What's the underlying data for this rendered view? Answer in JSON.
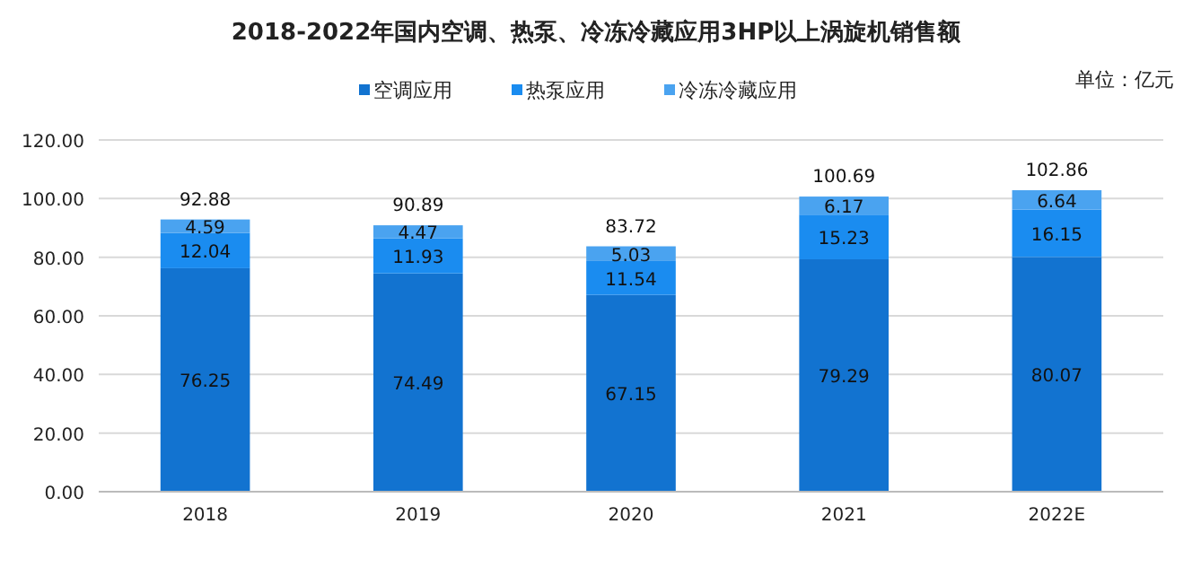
{
  "chart_data": {
    "type": "bar",
    "title": "2018-2022年国内空调、热泵、冷冻冷藏应用3HP以上涡旋机销售额",
    "annotations": [
      "单位：亿元"
    ],
    "categories": [
      "2018",
      "2019",
      "2020",
      "2021",
      "2022E"
    ],
    "stacked": true,
    "series": [
      {
        "name": "空调应用",
        "color": "#1273d0",
        "values": [
          76.25,
          74.49,
          67.15,
          79.29,
          80.07
        ]
      },
      {
        "name": "热泵应用",
        "color": "#1a8cf0",
        "values": [
          12.04,
          11.93,
          11.54,
          15.23,
          16.15
        ]
      },
      {
        "name": "冷冻冷藏应用",
        "color": "#4aa3f0",
        "values": [
          4.59,
          4.47,
          5.03,
          6.17,
          6.64
        ]
      }
    ],
    "totals": [
      "92.88",
      "90.89",
      "83.72",
      "100.69",
      "102.86"
    ],
    "data_labels": true,
    "legend": "top",
    "grid": "y",
    "ylim": [
      0,
      120
    ],
    "yticks": [
      {
        "value": 0,
        "label": "0.00"
      },
      {
        "value": 20,
        "label": "20.00"
      },
      {
        "value": 40,
        "label": "40.00"
      },
      {
        "value": 60,
        "label": "60.00"
      },
      {
        "value": 80,
        "label": "80.00"
      },
      {
        "value": 100,
        "label": "100.00"
      },
      {
        "value": 120,
        "label": "120.00"
      }
    ]
  }
}
